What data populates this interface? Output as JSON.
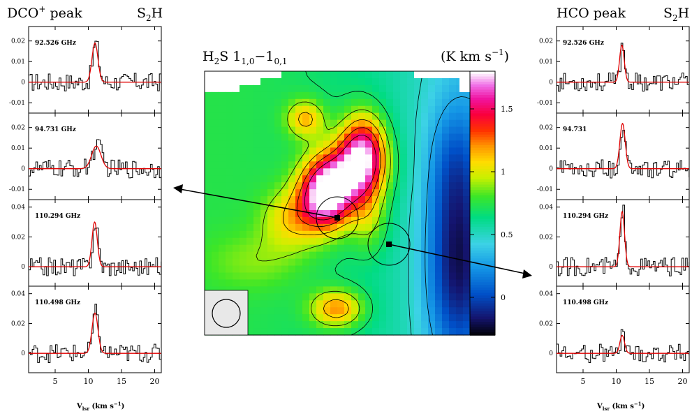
{
  "map": {
    "title_main": "H",
    "title_sub": "2",
    "title_mid": "S 1",
    "title_sub2": "1,0",
    "title_dash": "−1",
    "title_sub3": "0,1",
    "unit_label": "(K km s",
    "unit_sup": "−1",
    "unit_close": ")",
    "colorbar_ticks": [
      "0",
      "0.5",
      "1",
      "1.5"
    ],
    "colorbar_tick_values": [
      0,
      0.5,
      1,
      1.5
    ],
    "colorbar_range": [
      -0.3,
      1.8
    ]
  },
  "left_panel": {
    "title_prefix": "DCO",
    "title_sup": "+",
    "title_suffix": " peak",
    "source_main": "S",
    "source_sub": "2",
    "source_end": "H",
    "spectra": [
      {
        "label": "92.526 GHz",
        "yticks": [
          "0.02",
          "0.01",
          "0",
          "-0.01"
        ],
        "ytick_values": [
          0.02,
          0.01,
          0,
          -0.01
        ],
        "ylim": [
          -0.015,
          0.027
        ],
        "peak": 0.019,
        "center": 11.0,
        "width": 0.45
      },
      {
        "label": "94.731 GHz",
        "yticks": [
          "0.02",
          "0.01",
          "0",
          "-0.01"
        ],
        "ytick_values": [
          0.02,
          0.01,
          0,
          -0.01
        ],
        "ylim": [
          -0.015,
          0.027
        ],
        "peak": 0.011,
        "center": 11.2,
        "width": 0.7
      },
      {
        "label": "110.294 GHz",
        "yticks": [
          "0.04",
          "0.02",
          "0"
        ],
        "ytick_values": [
          0.04,
          0.02,
          0
        ],
        "ylim": [
          -0.013,
          0.045
        ],
        "peak": 0.03,
        "center": 10.95,
        "width": 0.4
      },
      {
        "label": "110.498 GHz",
        "yticks": [
          "0.04",
          "0.02",
          "0"
        ],
        "ytick_values": [
          0.04,
          0.02,
          0
        ],
        "ylim": [
          -0.013,
          0.045
        ],
        "peak": 0.027,
        "center": 11.0,
        "width": 0.45
      }
    ]
  },
  "right_panel": {
    "title_prefix": "HCO",
    "title_suffix": " peak",
    "source_main": "S",
    "source_sub": "2",
    "source_end": "H",
    "spectra": [
      {
        "label": "92.526 GHz",
        "yticks": [
          "0.02",
          "0.01",
          "0",
          "-0.01"
        ],
        "ytick_values": [
          0.02,
          0.01,
          0,
          -0.01
        ],
        "ylim": [
          -0.015,
          0.027
        ],
        "peak": 0.018,
        "center": 10.85,
        "width": 0.35
      },
      {
        "label": "94.731",
        "yticks": [
          "0.02",
          "0.01",
          "0",
          "-0.01"
        ],
        "ytick_values": [
          0.02,
          0.01,
          0,
          -0.01
        ],
        "ylim": [
          -0.015,
          0.027
        ],
        "peak": 0.022,
        "center": 10.95,
        "width": 0.4
      },
      {
        "label": "110.294 GHz",
        "yticks": [
          "0.04",
          "0.02",
          "0"
        ],
        "ytick_values": [
          0.04,
          0.02,
          0
        ],
        "ylim": [
          -0.013,
          0.045
        ],
        "peak": 0.037,
        "center": 10.9,
        "width": 0.35
      },
      {
        "label": "110.498 GHz",
        "yticks": [
          "0.04",
          "0.02",
          "0"
        ],
        "ytick_values": [
          0.04,
          0.02,
          0
        ],
        "ylim": [
          -0.013,
          0.045
        ],
        "peak": 0.012,
        "center": 10.9,
        "width": 0.35
      }
    ]
  },
  "xaxis": {
    "ticks": [
      "5",
      "10",
      "15",
      "20"
    ],
    "tick_values": [
      5,
      10,
      15,
      20
    ],
    "xlim": [
      1,
      21
    ],
    "label_v": "V",
    "label_sub": "lsr",
    "label_unit": " (km s",
    "label_sup": "−1",
    "label_close": ")"
  },
  "chart_data": [
    {
      "type": "heatmap",
      "title": "H2S 1(1,0)-1(0,1)",
      "colorbar_label": "(K km s-1)",
      "colorbar_range": [
        -0.3,
        1.8
      ],
      "colorbar_ticks": [
        0,
        0.5,
        1,
        1.5
      ]
    },
    {
      "type": "line",
      "panel": "DCO+ peak",
      "x_label": "Vlsr (km s-1)",
      "xlim": [
        1,
        21
      ],
      "series": [
        {
          "name": "92.526 GHz",
          "peak": 0.019,
          "center": 11.0
        },
        {
          "name": "94.731 GHz",
          "peak": 0.011,
          "center": 11.2
        },
        {
          "name": "110.294 GHz",
          "peak": 0.03,
          "center": 10.95
        },
        {
          "name": "110.498 GHz",
          "peak": 0.027,
          "center": 11.0
        }
      ]
    },
    {
      "type": "line",
      "panel": "HCO peak",
      "x_label": "Vlsr (km s-1)",
      "xlim": [
        1,
        21
      ],
      "series": [
        {
          "name": "92.526 GHz",
          "peak": 0.018,
          "center": 10.85
        },
        {
          "name": "94.731",
          "peak": 0.022,
          "center": 10.95
        },
        {
          "name": "110.294 GHz",
          "peak": 0.037,
          "center": 10.9
        },
        {
          "name": "110.498 GHz",
          "peak": 0.012,
          "center": 10.9
        }
      ]
    }
  ]
}
